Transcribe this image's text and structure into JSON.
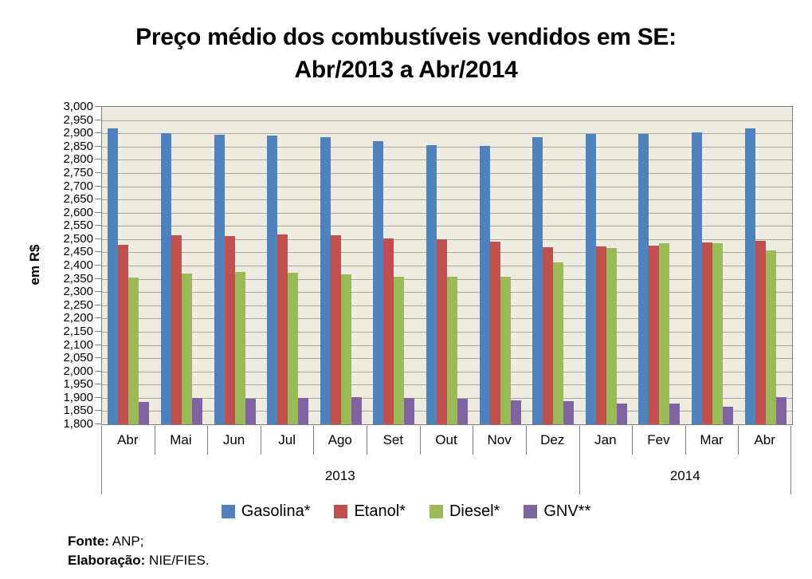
{
  "title": {
    "line1": "Preço médio dos combustíveis vendidos em SE:",
    "line2": "Abr/2013 a Abr/2014"
  },
  "chart_data": {
    "type": "bar",
    "title": "Preço médio dos combustíveis vendidos em SE: Abr/2013 a Abr/2014",
    "xlabel": "",
    "ylabel": "em R$",
    "ylim": [
      1.8,
      3.0
    ],
    "ytick_step": 0.05,
    "grid": true,
    "legend_position": "bottom",
    "categories": [
      "Abr",
      "Mai",
      "Jun",
      "Jul",
      "Ago",
      "Set",
      "Out",
      "Nov",
      "Dez",
      "Jan",
      "Fev",
      "Mar",
      "Abr"
    ],
    "year_groups": [
      {
        "label": "2013",
        "span": 9
      },
      {
        "label": "2014",
        "span": 4
      }
    ],
    "series": [
      {
        "name": "Gasolina*",
        "color": "#4F81BD",
        "values": [
          2.918,
          2.902,
          2.896,
          2.892,
          2.886,
          2.87,
          2.856,
          2.853,
          2.885,
          2.898,
          2.898,
          2.904,
          2.92
        ]
      },
      {
        "name": "Etanol*",
        "color": "#C0504D",
        "values": [
          2.478,
          2.514,
          2.512,
          2.518,
          2.515,
          2.503,
          2.5,
          2.492,
          2.469,
          2.472,
          2.475,
          2.487,
          2.494
        ]
      },
      {
        "name": "Diesel*",
        "color": "#9BBB59",
        "values": [
          2.354,
          2.369,
          2.376,
          2.372,
          2.366,
          2.359,
          2.357,
          2.358,
          2.412,
          2.465,
          2.484,
          2.485,
          2.456
        ]
      },
      {
        "name": "GNV**",
        "color": "#8064A2",
        "values": [
          1.885,
          1.899,
          1.898,
          1.9,
          1.902,
          1.899,
          1.897,
          1.891,
          1.887,
          1.879,
          1.878,
          1.866,
          1.903
        ]
      }
    ]
  },
  "footer": {
    "fonte_label": "Fonte:",
    "fonte_value": "ANP;",
    "elaboracao_label": "Elaboração:",
    "elaboracao_value": "NIE/FIES."
  },
  "colors": {
    "plot_bg": "#EEECE1",
    "gridline": "#A6A6A6",
    "axis_line": "#808080",
    "text": "#000000"
  }
}
